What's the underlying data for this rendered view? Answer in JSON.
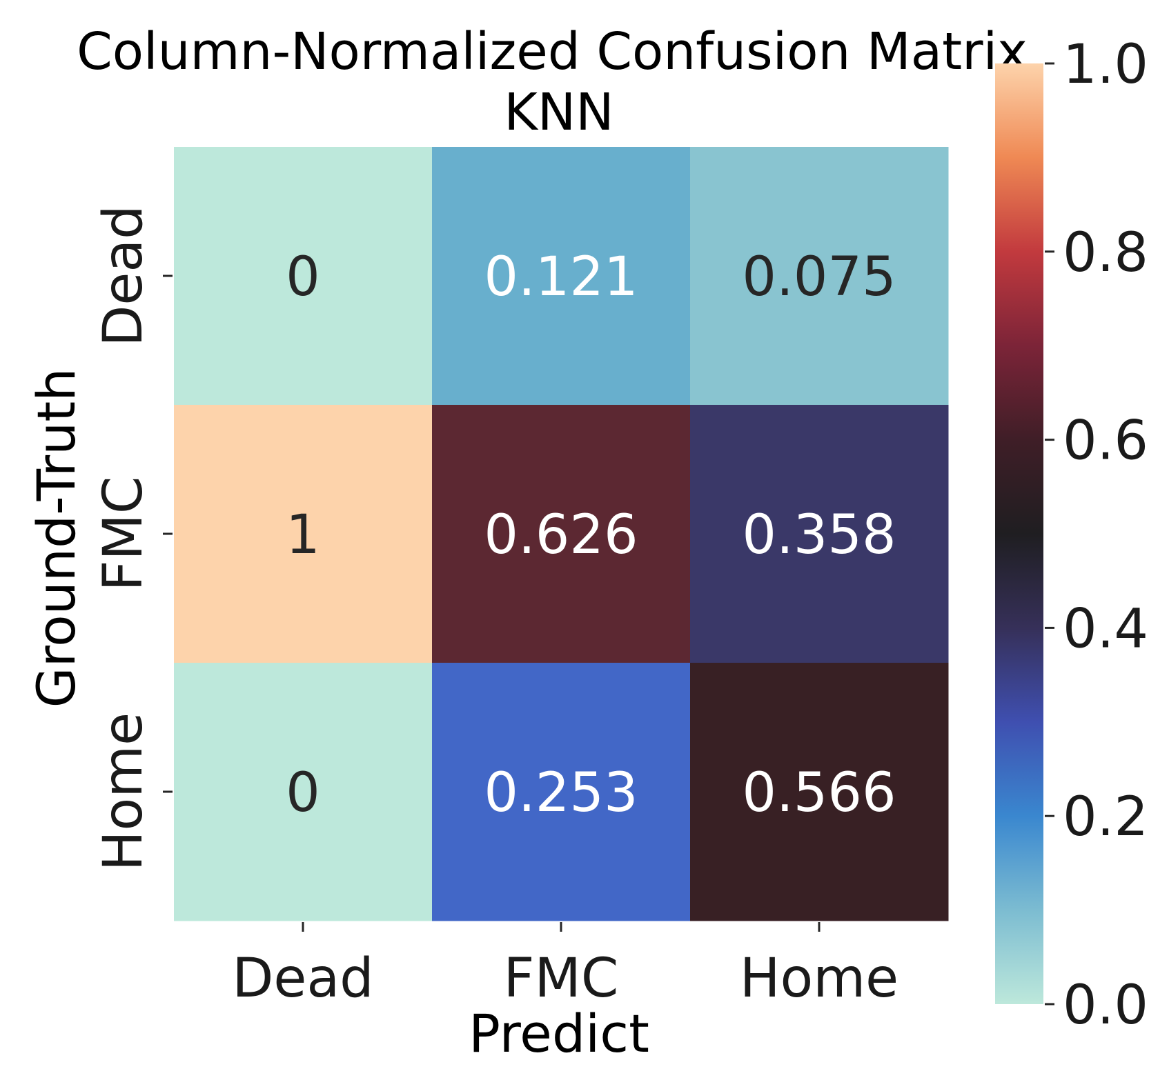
{
  "chart_data": {
    "type": "heatmap",
    "title": "Column-Normalized Confusion Matrix",
    "subtitle": "KNN",
    "xlabel": "Predict",
    "ylabel": "Ground-Truth",
    "x_categories": [
      "Dead",
      "FMC",
      "Home"
    ],
    "y_categories": [
      "Dead",
      "FMC",
      "Home"
    ],
    "values": [
      [
        0,
        0.121,
        0.075
      ],
      [
        1,
        0.626,
        0.358
      ],
      [
        0,
        0.253,
        0.566
      ]
    ],
    "cell_labels": [
      [
        "0",
        "0.121",
        "0.075"
      ],
      [
        "1",
        "0.626",
        "0.358"
      ],
      [
        "0",
        "0.253",
        "0.566"
      ]
    ],
    "colorbar": {
      "range": [
        0.0,
        1.0
      ],
      "ticks": [
        0.0,
        0.2,
        0.4,
        0.6,
        0.8,
        1.0
      ],
      "tick_labels": [
        "0.0",
        "0.2",
        "0.4",
        "0.6",
        "0.8",
        "1.0"
      ]
    },
    "colormap": "icefire",
    "colormap_stops": [
      {
        "v": 0.0,
        "color": "#bde8db"
      },
      {
        "v": 0.1,
        "color": "#7cbcd1"
      },
      {
        "v": 0.2,
        "color": "#3a87cf"
      },
      {
        "v": 0.3,
        "color": "#3f4fb0"
      },
      {
        "v": 0.4,
        "color": "#363059"
      },
      {
        "v": 0.5,
        "color": "#1f1e21"
      },
      {
        "v": 0.6,
        "color": "#3f1e27"
      },
      {
        "v": 0.7,
        "color": "#7c2438"
      },
      {
        "v": 0.8,
        "color": "#c23a3e"
      },
      {
        "v": 0.9,
        "color": "#ef8954"
      },
      {
        "v": 1.0,
        "color": "#fdd3ab"
      }
    ],
    "cell_colors": [
      [
        "#bde8db",
        "#68afcd",
        "#89c4d0"
      ],
      [
        "#fdd3ab",
        "#5c2832",
        "#3a3868"
      ],
      [
        "#bde8db",
        "#4267c7",
        "#382024"
      ]
    ],
    "cell_text_colors": [
      [
        "#262626",
        "#ffffff",
        "#262626"
      ],
      [
        "#262626",
        "#ffffff",
        "#ffffff"
      ],
      [
        "#262626",
        "#ffffff",
        "#ffffff"
      ]
    ],
    "grid": false,
    "legend": "colorbar-right"
  }
}
